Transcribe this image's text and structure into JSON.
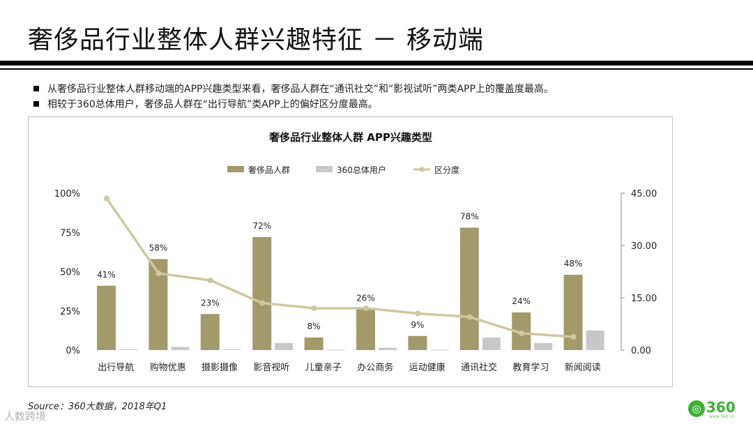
{
  "page": {
    "title": "奢侈品行业整体人群兴趣特征 － 移动端",
    "bullets": [
      "从奢侈品行业整体人群移动端的APP兴趣类型来看，奢侈品人群在“通讯社交”和“影视试听”两类APP上的覆盖度最高。",
      "相较于360总体用户，奢侈品人群在“出行导航”类APP上的偏好区分度最高。"
    ],
    "source": "Source：360大数据，2018年Q1",
    "watermark": "人数跨境",
    "logo_text": "360",
    "logo_sub": "www.360.cn"
  },
  "colors": {
    "series_luxury": "#a39a6c",
    "series_360": "#c8c8c8",
    "line": "#cdc8a0"
  },
  "chart_data": {
    "type": "bar",
    "title": "奢侈品行业整体人群 APP兴趣类型",
    "categories": [
      "出行导航",
      "购物优惠",
      "摄影摄像",
      "影音视听",
      "儿童亲子",
      "办公商务",
      "运动健康",
      "通讯社交",
      "教育学习",
      "新闻阅读"
    ],
    "series": [
      {
        "name": "奢侈品人群",
        "kind": "bar",
        "axis": "left",
        "values": [
          41,
          58,
          23,
          72,
          8,
          26,
          9,
          78,
          24,
          48
        ],
        "labels": [
          "41%",
          "58%",
          "23%",
          "72%",
          "8%",
          "26%",
          "9%",
          "78%",
          "24%",
          "48%"
        ]
      },
      {
        "name": "360总体用户",
        "kind": "bar",
        "axis": "left",
        "values": [
          0.5,
          2,
          0.5,
          4.5,
          0.3,
          1.5,
          0.3,
          8,
          4.5,
          12.5
        ]
      },
      {
        "name": "区分度",
        "kind": "line",
        "axis": "right",
        "values": [
          43.5,
          22,
          20,
          13.5,
          12,
          12,
          10.5,
          9.5,
          4.8,
          3.8
        ]
      }
    ],
    "y_left": {
      "min": 0,
      "max": 100,
      "ticks": [
        0,
        25,
        50,
        75,
        100
      ],
      "tick_labels": [
        "0%",
        "25%",
        "50%",
        "75%",
        "100%"
      ]
    },
    "y_right": {
      "min": 0,
      "max": 45,
      "ticks": [
        0,
        15,
        30,
        45
      ],
      "tick_labels": [
        "0.00",
        "15.00",
        "30.00",
        "45.00"
      ]
    },
    "legend_position": "top-center",
    "grid": false
  }
}
